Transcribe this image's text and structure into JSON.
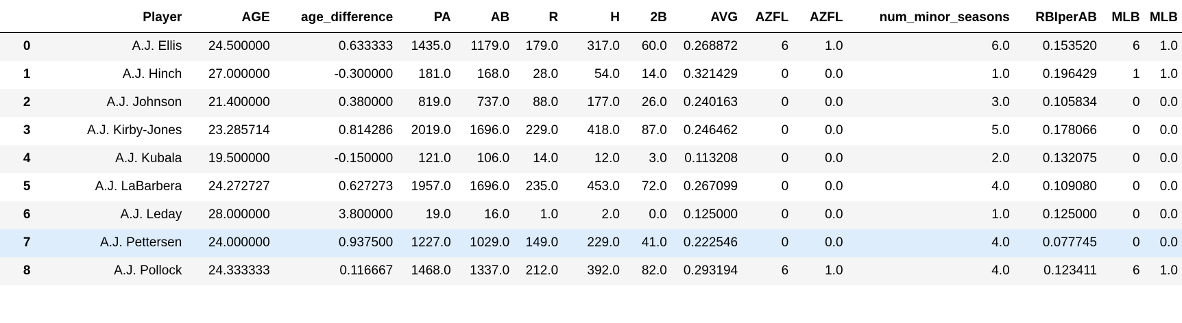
{
  "table": {
    "index_header": "",
    "columns": [
      "Player",
      "AGE",
      "age_difference",
      "PA",
      "AB",
      "R",
      "H",
      "2B",
      "AVG",
      "AZFL",
      "AZFL",
      "num_minor_seasons",
      "RBIperAB",
      "MLB",
      "MLB"
    ],
    "highlighted_row": 7,
    "rows": [
      {
        "index": "0",
        "cells": [
          "A.J. Ellis",
          "24.500000",
          "0.633333",
          "1435.0",
          "1179.0",
          "179.0",
          "317.0",
          "60.0",
          "0.268872",
          "6",
          "1.0",
          "6.0",
          "0.153520",
          "6",
          "1.0"
        ]
      },
      {
        "index": "1",
        "cells": [
          "A.J. Hinch",
          "27.000000",
          "-0.300000",
          "181.0",
          "168.0",
          "28.0",
          "54.0",
          "14.0",
          "0.321429",
          "0",
          "0.0",
          "1.0",
          "0.196429",
          "1",
          "1.0"
        ]
      },
      {
        "index": "2",
        "cells": [
          "A.J. Johnson",
          "21.400000",
          "0.380000",
          "819.0",
          "737.0",
          "88.0",
          "177.0",
          "26.0",
          "0.240163",
          "0",
          "0.0",
          "3.0",
          "0.105834",
          "0",
          "0.0"
        ]
      },
      {
        "index": "3",
        "cells": [
          "A.J. Kirby-Jones",
          "23.285714",
          "0.814286",
          "2019.0",
          "1696.0",
          "229.0",
          "418.0",
          "87.0",
          "0.246462",
          "0",
          "0.0",
          "5.0",
          "0.178066",
          "0",
          "0.0"
        ]
      },
      {
        "index": "4",
        "cells": [
          "A.J. Kubala",
          "19.500000",
          "-0.150000",
          "121.0",
          "106.0",
          "14.0",
          "12.0",
          "3.0",
          "0.113208",
          "0",
          "0.0",
          "2.0",
          "0.132075",
          "0",
          "0.0"
        ]
      },
      {
        "index": "5",
        "cells": [
          "A.J. LaBarbera",
          "24.272727",
          "0.627273",
          "1957.0",
          "1696.0",
          "235.0",
          "453.0",
          "72.0",
          "0.267099",
          "0",
          "0.0",
          "4.0",
          "0.109080",
          "0",
          "0.0"
        ]
      },
      {
        "index": "6",
        "cells": [
          "A.J. Leday",
          "28.000000",
          "3.800000",
          "19.0",
          "16.0",
          "1.0",
          "2.0",
          "0.0",
          "0.125000",
          "0",
          "0.0",
          "1.0",
          "0.125000",
          "0",
          "0.0"
        ]
      },
      {
        "index": "7",
        "cells": [
          "A.J. Pettersen",
          "24.000000",
          "0.937500",
          "1227.0",
          "1029.0",
          "149.0",
          "229.0",
          "41.0",
          "0.222546",
          "0",
          "0.0",
          "4.0",
          "0.077745",
          "0",
          "0.0"
        ]
      },
      {
        "index": "8",
        "cells": [
          "A.J. Pollock",
          "24.333333",
          "0.116667",
          "1468.0",
          "1337.0",
          "212.0",
          "392.0",
          "82.0",
          "0.293194",
          "6",
          "1.0",
          "4.0",
          "0.123411",
          "6",
          "1.0"
        ]
      }
    ]
  },
  "colors": {
    "stripe": "#f5f5f5",
    "hover_row": "#deedfb",
    "header_rule": "#000000"
  }
}
